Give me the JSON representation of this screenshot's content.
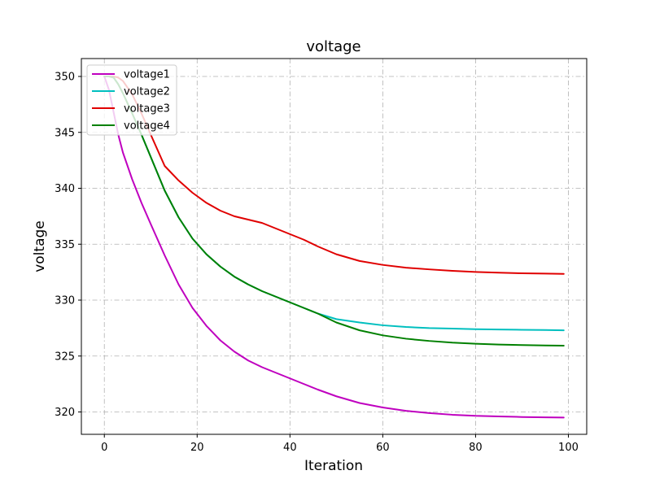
{
  "chart_data": {
    "type": "line",
    "title": "voltage",
    "xlabel": "Iteration",
    "ylabel": "voltage",
    "xlim": [
      -4.95,
      103.95
    ],
    "ylim": [
      318.0,
      351.6
    ],
    "xticks": [
      0,
      20,
      40,
      60,
      80,
      100
    ],
    "yticks": [
      320,
      325,
      330,
      335,
      340,
      345,
      350
    ],
    "grid": true,
    "legend_position": "upper-left",
    "series": [
      {
        "name": "voltage1",
        "color": "#bf00bf",
        "x": [
          0,
          1,
          2,
          3,
          4,
          6,
          8,
          10,
          13,
          16,
          19,
          22,
          25,
          28,
          31,
          34,
          37,
          40,
          43,
          46,
          50,
          55,
          60,
          65,
          70,
          75,
          80,
          85,
          90,
          95,
          99
        ],
        "y": [
          350.0,
          348.8,
          346.8,
          344.8,
          343.2,
          340.8,
          338.7,
          336.8,
          334.0,
          331.4,
          329.3,
          327.7,
          326.4,
          325.4,
          324.6,
          324.0,
          323.5,
          323.0,
          322.5,
          322.0,
          321.4,
          320.8,
          320.4,
          320.1,
          319.9,
          319.75,
          319.65,
          319.6,
          319.55,
          319.52,
          319.5
        ]
      },
      {
        "name": "voltage2",
        "color": "#00bfbf",
        "x": [
          0,
          1,
          2,
          3,
          4,
          6,
          8,
          10,
          13,
          16,
          19,
          22,
          25,
          28,
          31,
          34,
          37,
          40,
          43,
          46,
          50,
          55,
          60,
          65,
          70,
          75,
          80,
          85,
          90,
          95,
          99
        ],
        "y": [
          350.0,
          350.0,
          349.9,
          349.3,
          348.5,
          346.7,
          344.8,
          342.8,
          339.8,
          337.4,
          335.5,
          334.1,
          333.0,
          332.1,
          331.4,
          330.8,
          330.3,
          329.8,
          329.3,
          328.8,
          328.3,
          328.0,
          327.75,
          327.6,
          327.5,
          327.45,
          327.4,
          327.37,
          327.35,
          327.33,
          327.3
        ]
      },
      {
        "name": "voltage3",
        "color": "#e00000",
        "x": [
          0,
          1,
          2,
          3,
          4,
          6,
          8,
          10,
          13,
          16,
          19,
          22,
          25,
          28,
          31,
          34,
          37,
          40,
          43,
          46,
          50,
          55,
          60,
          65,
          70,
          75,
          80,
          85,
          90,
          95,
          99
        ],
        "y": [
          350.0,
          350.0,
          350.0,
          349.9,
          349.6,
          348.4,
          346.7,
          344.8,
          342.0,
          340.7,
          339.6,
          338.7,
          338.0,
          337.5,
          337.2,
          336.9,
          336.4,
          335.9,
          335.4,
          334.8,
          334.1,
          333.5,
          333.15,
          332.9,
          332.75,
          332.62,
          332.52,
          332.45,
          332.4,
          332.37,
          332.35
        ]
      },
      {
        "name": "voltage4",
        "color": "#008000",
        "x": [
          0,
          1,
          2,
          3,
          4,
          6,
          8,
          10,
          13,
          16,
          19,
          22,
          25,
          28,
          31,
          34,
          37,
          40,
          43,
          46,
          50,
          55,
          60,
          65,
          70,
          75,
          80,
          85,
          90,
          95,
          99
        ],
        "y": [
          350.0,
          350.0,
          349.9,
          349.3,
          348.5,
          346.7,
          344.8,
          342.8,
          339.8,
          337.4,
          335.5,
          334.1,
          333.0,
          332.1,
          331.4,
          330.8,
          330.3,
          329.8,
          329.3,
          328.8,
          328.0,
          327.3,
          326.85,
          326.55,
          326.35,
          326.2,
          326.1,
          326.03,
          325.98,
          325.95,
          325.93
        ]
      }
    ]
  }
}
